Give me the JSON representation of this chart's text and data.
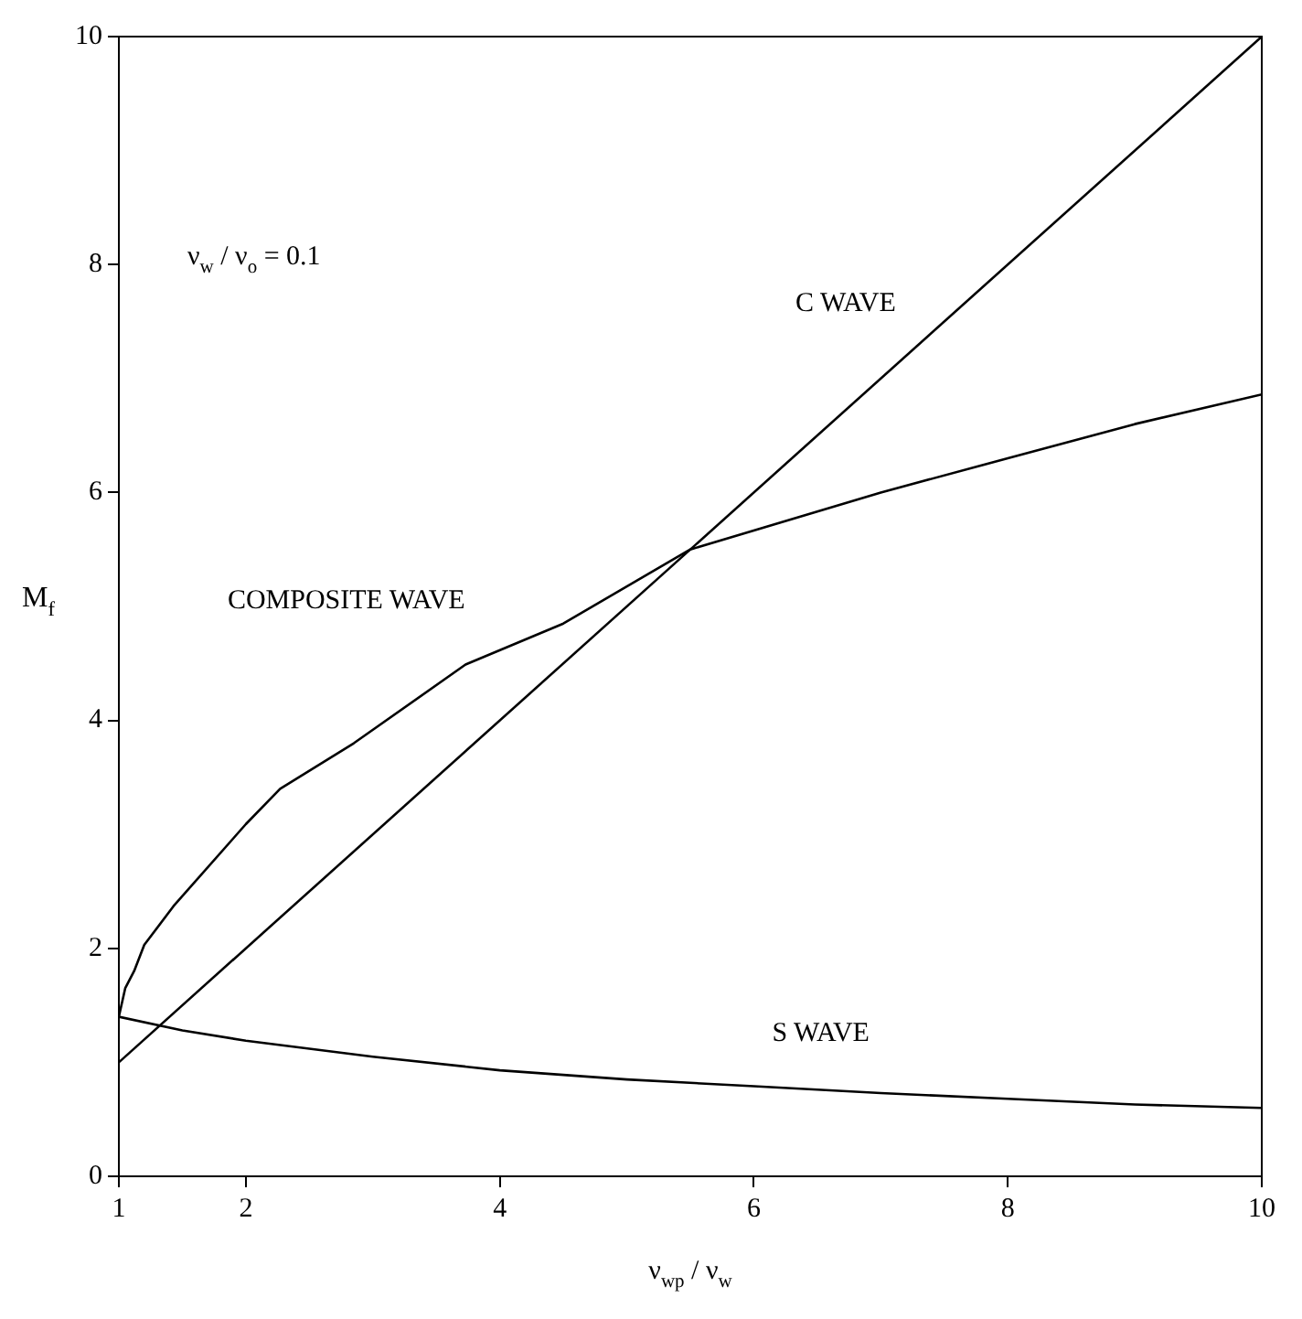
{
  "chart_data": {
    "type": "line",
    "xlabel": "ν$_{wp}$ / ν$_{w}$",
    "ylabel": "M$_{f}$",
    "annotations": [
      "ν$_{w}$ / ν$_{o}$ = 0.1"
    ],
    "xlim": [
      1,
      10
    ],
    "xticks": [
      1,
      2,
      4,
      6,
      8,
      10
    ],
    "ylim": [
      0,
      10
    ],
    "yticks": [
      0,
      2,
      4,
      6,
      8,
      10
    ],
    "grid": false,
    "legend": false,
    "marker": "none",
    "line_style": "solid",
    "series": [
      {
        "name": "C WAVE",
        "color": "#000000",
        "x": [
          1,
          10
        ],
        "values": [
          1,
          10
        ]
      },
      {
        "name": "COMPOSITE WAVE",
        "color": "#000000",
        "x": [
          1,
          1.05,
          1.12,
          1.2,
          1.43,
          2,
          2.27,
          2.85,
          3.73,
          4.5,
          5.5,
          7,
          8,
          9,
          10
        ],
        "values": [
          1.4,
          1.65,
          1.8,
          2.03,
          2.37,
          3.09,
          3.4,
          3.8,
          4.49,
          4.85,
          5.5,
          6.0,
          6.3,
          6.6,
          6.86
        ]
      },
      {
        "name": "S WAVE",
        "color": "#000000",
        "x": [
          1,
          1.5,
          2,
          3,
          4,
          5,
          6,
          7,
          8,
          9,
          10
        ],
        "values": [
          1.4,
          1.28,
          1.19,
          1.05,
          0.93,
          0.85,
          0.79,
          0.73,
          0.68,
          0.63,
          0.6
        ]
      }
    ]
  }
}
